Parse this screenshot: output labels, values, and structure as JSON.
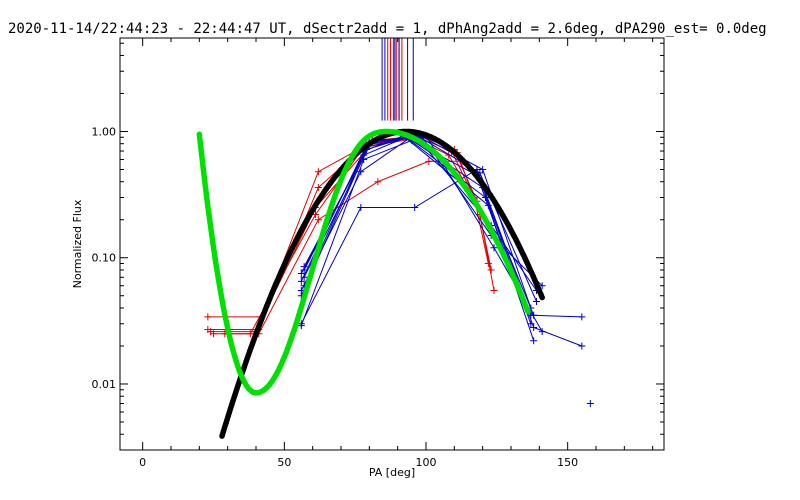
{
  "chart_data": {
    "type": "line",
    "title": "2020-11-14/22:44:23 - 22:44:47 UT, dSectr2add = 1, dPhAng2add = 2.6deg, dPA290_est=  0.0deg",
    "xlabel": "PA [deg]",
    "ylabel": "Normalized Flux",
    "yscale": "log",
    "xlim": [
      -8,
      184
    ],
    "ylim": [
      0.003,
      5.5
    ],
    "x_ticks": [
      0,
      50,
      100,
      150
    ],
    "x_tick_labels": [
      "0",
      "50",
      "100",
      "150"
    ],
    "y_ticks": [
      1,
      0.1,
      0.01
    ],
    "y_tick_labels": [
      "1.00",
      "0.10",
      "0.01"
    ],
    "colors": {
      "red": "#e00000",
      "blue": "#0000c8",
      "black": "#000000",
      "green": "#00e000"
    },
    "vertical_markers": {
      "red": [
        86.5,
        87.5,
        88.5,
        89.5,
        90.5,
        91.5
      ],
      "blue": [
        84.5,
        85.5,
        89,
        90.5,
        93.5,
        95.5
      ]
    },
    "series": [
      {
        "name": "red-1",
        "color": "red",
        "x": [
          23,
          42,
          62,
          79,
          97,
          109,
          117,
          122
        ],
        "y": [
          0.034,
          0.034,
          0.48,
          0.78,
          0.9,
          0.7,
          0.3,
          0.09
        ]
      },
      {
        "name": "red-2",
        "color": "red",
        "x": [
          23,
          41,
          62,
          80,
          98,
          110,
          118,
          123
        ],
        "y": [
          0.027,
          0.027,
          0.36,
          0.82,
          0.92,
          0.72,
          0.28,
          0.08
        ]
      },
      {
        "name": "red-3",
        "color": "red",
        "x": [
          24,
          40,
          61,
          82,
          99,
          111,
          119,
          124
        ],
        "y": [
          0.026,
          0.026,
          0.25,
          0.85,
          0.93,
          0.68,
          0.22,
          0.055
        ]
      },
      {
        "name": "red-4",
        "color": "red",
        "x": [
          25,
          38,
          61,
          78,
          96,
          108,
          116
        ],
        "y": [
          0.025,
          0.025,
          0.22,
          0.75,
          0.88,
          0.65,
          0.32
        ]
      },
      {
        "name": "red-5",
        "color": "red",
        "x": [
          29,
          41,
          62,
          83,
          101,
          113
        ],
        "y": [
          0.025,
          0.025,
          0.2,
          0.4,
          0.58,
          0.58
        ]
      },
      {
        "name": "blue-1",
        "color": "blue",
        "x": [
          56,
          77,
          96,
          118,
          137,
          155
        ],
        "y": [
          0.03,
          0.25,
          0.25,
          0.5,
          0.035,
          0.034
        ]
      },
      {
        "name": "blue-2",
        "color": "blue",
        "x": [
          56,
          78,
          95,
          118,
          137
        ],
        "y": [
          0.029,
          0.6,
          0.85,
          0.45,
          0.03
        ]
      },
      {
        "name": "blue-3",
        "color": "blue",
        "x": [
          56,
          77,
          94,
          120,
          138,
          155
        ],
        "y": [
          0.055,
          0.48,
          0.88,
          0.36,
          0.028,
          0.02
        ]
      },
      {
        "name": "blue-4",
        "color": "blue",
        "x": [
          56,
          78,
          93,
          121,
          138
        ],
        "y": [
          0.075,
          0.65,
          0.9,
          0.3,
          0.022
        ]
      },
      {
        "name": "blue-5",
        "color": "blue",
        "x": [
          56,
          78,
          92,
          122,
          138
        ],
        "y": [
          0.065,
          0.7,
          0.92,
          0.26,
          0.035
        ]
      },
      {
        "name": "blue-6",
        "color": "blue",
        "x": [
          57,
          79,
          96,
          123,
          139
        ],
        "y": [
          0.085,
          0.72,
          0.94,
          0.18,
          0.055
        ]
      },
      {
        "name": "blue-7",
        "color": "blue",
        "x": [
          57,
          79,
          98,
          123,
          141
        ],
        "y": [
          0.06,
          0.75,
          0.95,
          0.15,
          0.06
        ]
      },
      {
        "name": "blue-8",
        "color": "blue",
        "x": [
          56,
          80,
          100,
          124,
          141
        ],
        "y": [
          0.05,
          0.8,
          0.93,
          0.12,
          0.026
        ]
      },
      {
        "name": "blue-9",
        "color": "blue",
        "x": [
          57,
          80,
          97,
          119,
          139
        ],
        "y": [
          0.08,
          0.82,
          0.92,
          0.47,
          0.045
        ]
      },
      {
        "name": "blue-10",
        "color": "blue",
        "x": [
          57,
          81,
          99,
          120,
          137
        ],
        "y": [
          0.07,
          0.85,
          0.9,
          0.5,
          0.04
        ]
      }
    ],
    "lone_points": [
      {
        "color": "blue",
        "x": 158,
        "y": 0.007
      }
    ],
    "model_curves": [
      {
        "name": "black-model",
        "color": "black",
        "style": "dotted-thick",
        "x_range": [
          28,
          141
        ],
        "peak_x": 93,
        "peak_y": 1.0,
        "sigma": 19.5
      },
      {
        "name": "green-model",
        "color": "green",
        "style": "dotted-thick",
        "x_range": [
          20,
          136
        ],
        "start_y": 0.95,
        "min_x": 40,
        "min_y": 0.0085,
        "peak_x": 86,
        "peak_y": 1.0,
        "sigma": 19.5
      }
    ]
  }
}
